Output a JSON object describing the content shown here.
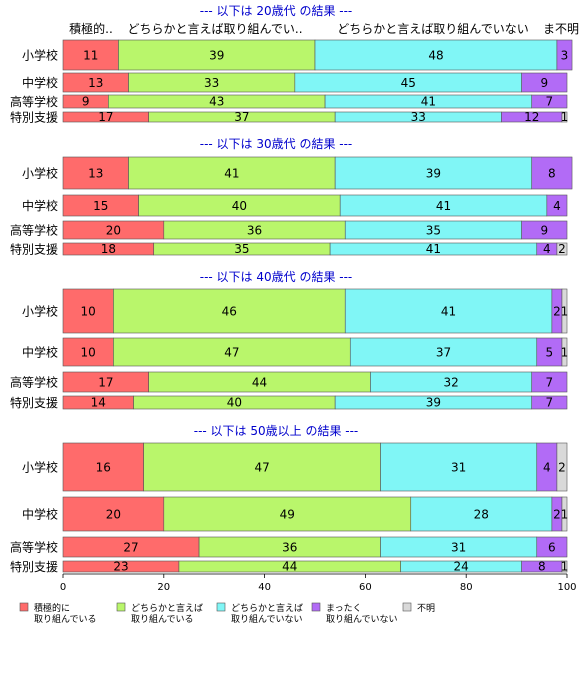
{
  "chart_data": {
    "type": "bar",
    "orientation": "horizontal-stacked-100",
    "xlim": [
      0,
      100
    ],
    "x_ticks": [
      "0",
      "20",
      "40",
      "60",
      "80",
      "100"
    ],
    "header_labels": [
      "積極的..",
      "どちらかと言えば取り組んでい..",
      "どちらかと言えば取り組んでいない",
      "ま",
      "不明"
    ],
    "legend": [
      {
        "name": "積極的に\n取り組んでいる",
        "color": "#ff6b6b"
      },
      {
        "name": "どちらかと言えば\n取り組んでいる",
        "color": "#b9f66b"
      },
      {
        "name": "どちらかと言えば\n取り組んでいない",
        "color": "#80f6f6"
      },
      {
        "name": "まったく\n取り組んでいない",
        "color": "#b26bf6"
      },
      {
        "name": "不明",
        "color": "#d9d9d9"
      }
    ],
    "groups": [
      {
        "title": "--- 以下は 20歳代 の結果 ---",
        "rows": [
          {
            "label": "小学校",
            "values": [
              11,
              39,
              48,
              3,
              0
            ]
          },
          {
            "label": "中学校",
            "values": [
              13,
              33,
              45,
              9,
              0
            ]
          },
          {
            "label": "高等学校",
            "values": [
              9,
              43,
              41,
              7,
              0
            ]
          },
          {
            "label": "特別支援",
            "values": [
              17,
              37,
              33,
              12,
              1
            ]
          }
        ]
      },
      {
        "title": "--- 以下は 30歳代 の結果 ---",
        "rows": [
          {
            "label": "小学校",
            "values": [
              13,
              41,
              39,
              8,
              0
            ]
          },
          {
            "label": "中学校",
            "values": [
              15,
              40,
              41,
              4,
              0
            ]
          },
          {
            "label": "高等学校",
            "values": [
              20,
              36,
              35,
              9,
              0
            ]
          },
          {
            "label": "特別支援",
            "values": [
              18,
              35,
              41,
              4,
              2
            ]
          }
        ]
      },
      {
        "title": "--- 以下は 40歳代 の結果 ---",
        "rows": [
          {
            "label": "小学校",
            "values": [
              10,
              46,
              41,
              2,
              1
            ]
          },
          {
            "label": "中学校",
            "values": [
              10,
              47,
              37,
              5,
              1
            ]
          },
          {
            "label": "高等学校",
            "values": [
              17,
              44,
              32,
              7,
              0
            ]
          },
          {
            "label": "特別支援",
            "values": [
              14,
              40,
              39,
              7,
              0
            ]
          }
        ]
      },
      {
        "title": "--- 以下は 50歳以上 の結果 ---",
        "rows": [
          {
            "label": "小学校",
            "values": [
              16,
              47,
              31,
              4,
              2
            ]
          },
          {
            "label": "中学校",
            "values": [
              20,
              49,
              28,
              2,
              1
            ]
          },
          {
            "label": "高等学校",
            "values": [
              27,
              36,
              31,
              6,
              0
            ]
          },
          {
            "label": "特別支援",
            "values": [
              23,
              44,
              24,
              8,
              1
            ]
          }
        ]
      }
    ]
  }
}
